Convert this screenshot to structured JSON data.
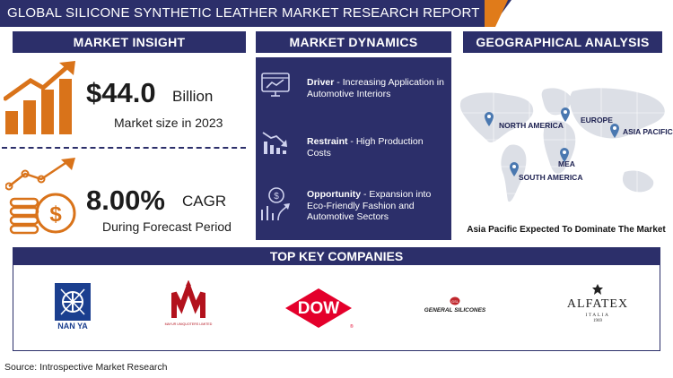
{
  "header": {
    "title": "GLOBAL SILICONE SYNTHETIC LEATHER MARKET RESEARCH REPORT"
  },
  "sections": {
    "insight": "MARKET INSIGHT",
    "dynamics": "MARKET DYNAMICS",
    "geo": "GEOGRAPHICAL ANALYSIS",
    "companies": "TOP KEY COMPANIES"
  },
  "insight": {
    "market_size": "$44.0",
    "market_unit": "Billion",
    "market_sub": "Market size in 2023",
    "cagr": "8.00%",
    "cagr_label": "CAGR",
    "cagr_sub": "During Forecast Period"
  },
  "dynamics": [
    {
      "label": "Driver",
      "text": " - Increasing Application in Automotive Interiors",
      "icon": "monitor-chart-icon"
    },
    {
      "label": "Restraint",
      "text": " - High Production Costs",
      "icon": "declining-chart-icon"
    },
    {
      "label": "Opportunity",
      "text": " - Expansion into Eco-Friendly Fashion and Automotive Sectors",
      "icon": "growth-opportunity-icon"
    }
  ],
  "geo": {
    "regions": [
      "NORTH AMERICA",
      "EUROPE",
      "ASIA PACIFIC",
      "MEA",
      "SOUTH AMERICA"
    ],
    "footnote": "Asia Pacific Expected To Dominate The Market"
  },
  "companies": {
    "nanya": "NAN YA",
    "mayur": "MAYUR UNIQUOTERS LIMITED",
    "dow": "DOW",
    "general": "GENERAL SILICONES",
    "alfatex": "ALFATEX",
    "alfatex_sub": "ITALIA",
    "alfatex_year": "1969"
  },
  "footer": {
    "source": "Source: Introspective Market Research"
  },
  "colors": {
    "navy": "#2c2f6a",
    "orange": "#e07b1a",
    "dow_red": "#e4002b"
  }
}
